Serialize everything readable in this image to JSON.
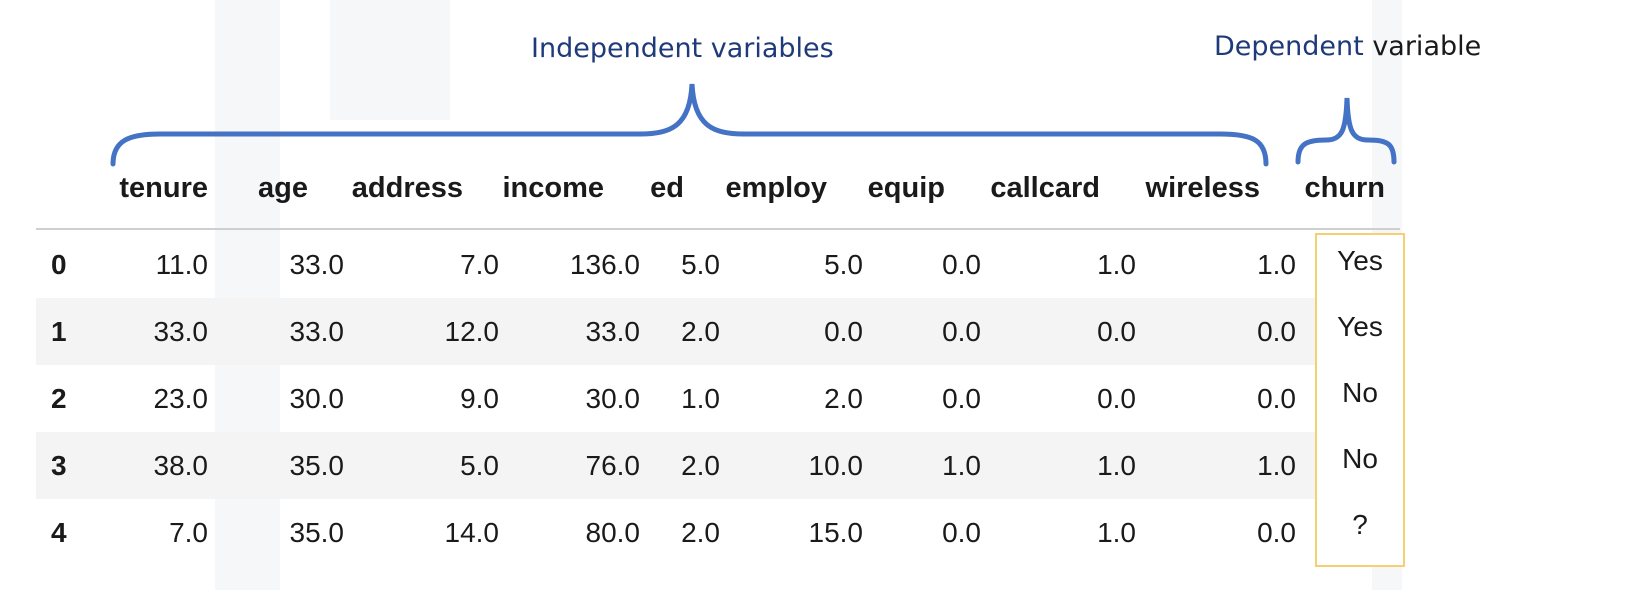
{
  "annotations": {
    "independent": "Independent variables",
    "dependent_part1": "Dependent",
    "dependent_part2": "variable"
  },
  "colors": {
    "brace": "#4472c4",
    "annotation_text": "#1f3a7a",
    "churn_box_border": "#f5cf72",
    "stripe": "#f4f4f4"
  },
  "table": {
    "columns": [
      "tenure",
      "age",
      "address",
      "income",
      "ed",
      "employ",
      "equip",
      "callcard",
      "wireless",
      "churn"
    ],
    "rows": [
      {
        "index": "0",
        "values": [
          "11.0",
          "33.0",
          "7.0",
          "136.0",
          "5.0",
          "5.0",
          "0.0",
          "1.0",
          "1.0"
        ],
        "churn": "Yes"
      },
      {
        "index": "1",
        "values": [
          "33.0",
          "33.0",
          "12.0",
          "33.0",
          "2.0",
          "0.0",
          "0.0",
          "0.0",
          "0.0"
        ],
        "churn": "Yes"
      },
      {
        "index": "2",
        "values": [
          "23.0",
          "30.0",
          "9.0",
          "30.0",
          "1.0",
          "2.0",
          "0.0",
          "0.0",
          "0.0"
        ],
        "churn": "No"
      },
      {
        "index": "3",
        "values": [
          "38.0",
          "35.0",
          "5.0",
          "76.0",
          "2.0",
          "10.0",
          "1.0",
          "1.0",
          "1.0"
        ],
        "churn": "No"
      },
      {
        "index": "4",
        "values": [
          "7.0",
          "35.0",
          "14.0",
          "80.0",
          "2.0",
          "15.0",
          "0.0",
          "1.0",
          "0.0"
        ],
        "churn": "?"
      }
    ]
  }
}
